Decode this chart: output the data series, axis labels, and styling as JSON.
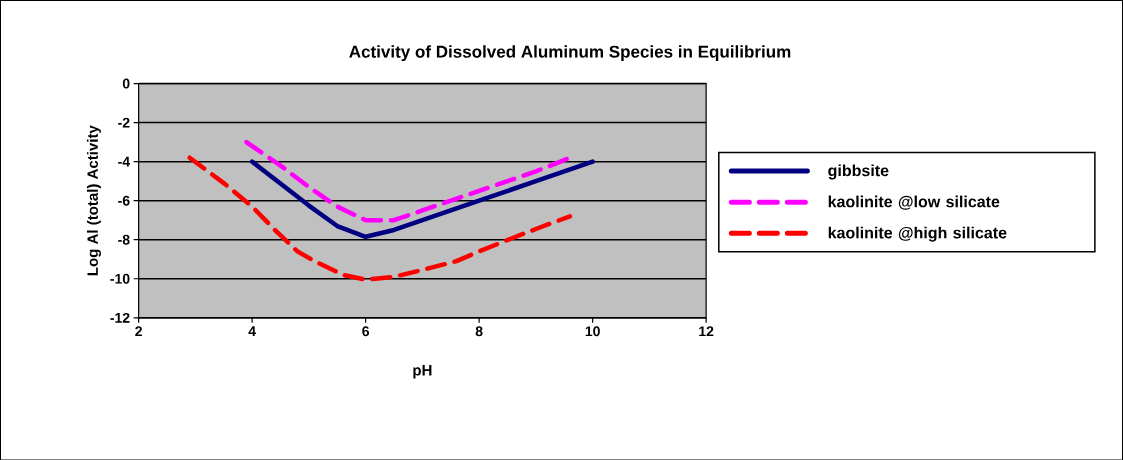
{
  "chart_data": {
    "type": "line",
    "title": "Activity of Dissolved Aluminum Species in Equilibrium",
    "xlabel": "pH",
    "ylabel": "Log Al (total) Activity",
    "series": [
      {
        "name": "gibbsite",
        "color": "#000080",
        "line_style": "solid",
        "x": [
          4,
          5,
          5.5,
          6,
          6.5,
          7,
          8,
          9,
          10
        ],
        "values": [
          -4,
          -6.25,
          -7.3,
          -7.85,
          -7.5,
          -7,
          -6,
          -5,
          -4
        ]
      },
      {
        "name": "kaolinite @low silicate",
        "color": "#ff00ff",
        "line_style": "dashed",
        "x": [
          3.9,
          4.5,
          5,
          5.5,
          6,
          6.5,
          7,
          8,
          9,
          9.6
        ],
        "values": [
          -3,
          -4.2,
          -5.3,
          -6.3,
          -7,
          -7,
          -6.5,
          -5.5,
          -4.5,
          -3.8
        ]
      },
      {
        "name": "kaolinite @high silicate",
        "color": "#ff0000",
        "line_style": "dashed",
        "x": [
          2.9,
          3.5,
          4,
          4.4,
          4.8,
          5.1,
          5.6,
          6,
          6.5,
          7,
          7.6,
          8,
          8.6,
          9,
          9.6
        ],
        "values": [
          -3.8,
          -5.1,
          -6.3,
          -7.5,
          -8.6,
          -9.1,
          -9.8,
          -10.05,
          -9.9,
          -9.55,
          -9.1,
          -8.6,
          -7.9,
          -7.45,
          -6.8
        ]
      }
    ],
    "xlim": [
      2,
      12
    ],
    "xticks": [
      2,
      4,
      6,
      8,
      10,
      12
    ],
    "ylim": [
      -12,
      0
    ],
    "yticks": [
      -12,
      -10,
      -8,
      -6,
      -4,
      -2,
      0
    ],
    "grid": "y",
    "legend": "right",
    "marker": "none"
  }
}
